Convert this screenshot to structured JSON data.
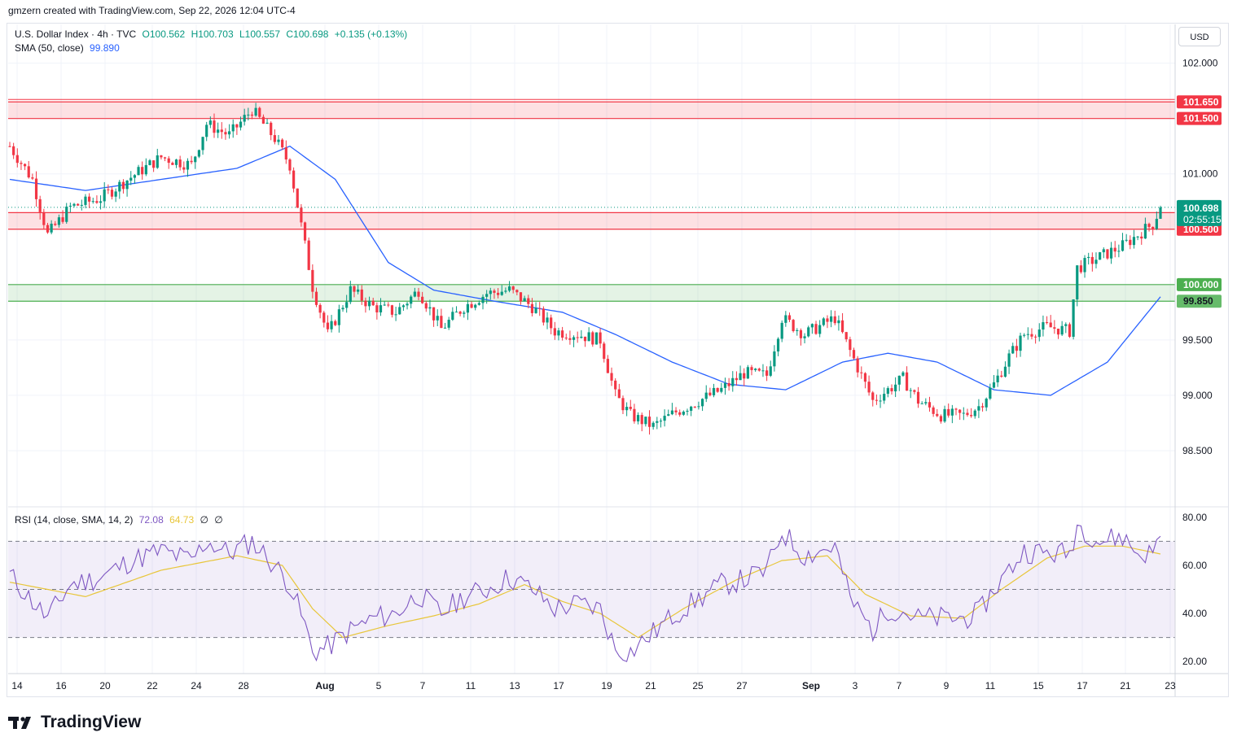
{
  "header": {
    "attribution": "gmzern created with TradingView.com, Sep 22, 2026 12:04 UTC-4"
  },
  "legend": {
    "symbol": "U.S. Dollar Index · 4h · TVC",
    "open": "O100.562",
    "high": "H100.703",
    "low": "L100.557",
    "close": "C100.698",
    "change": "+0.135 (+0.13%)",
    "sma_label": "SMA (50, close)",
    "sma_value": "99.890",
    "rsi_label": "RSI (14, close, SMA, 14, 2)",
    "rsi_value": "72.08",
    "rsi_sma_value": "64.73",
    "rsi_extra1": "∅",
    "rsi_extra2": "∅"
  },
  "currency_button": "USD",
  "brand": "TradingView",
  "colors": {
    "up": "#089981",
    "down": "#f23645",
    "sma": "#2962ff",
    "rsi": "#7e57c2",
    "rsi_sma": "#e8c63a",
    "resistance_zone": "#f23645",
    "support_zone": "#4caf50"
  },
  "chart_data": {
    "type": "candlestick",
    "title": "U.S. Dollar Index · 4h · TVC",
    "price_axis": {
      "ylim": [
        98.0,
        102.35
      ],
      "ticks": [
        "102.000",
        "101.000",
        "99.500",
        "99.000",
        "98.500"
      ],
      "tick_values": [
        102.0,
        101.0,
        99.5,
        99.0,
        98.5
      ]
    },
    "x_axis": {
      "tick_labels": [
        "14",
        "16",
        "20",
        "22",
        "24",
        "28",
        "Aug",
        "5",
        "7",
        "11",
        "13",
        "17",
        "19",
        "21",
        "25",
        "27",
        "Sep",
        "3",
        "7",
        "9",
        "11",
        "15",
        "17",
        "21",
        "23"
      ]
    },
    "zones": [
      {
        "name": "resistance-upper",
        "low": 101.5,
        "high": 101.65,
        "low_label": "101.500",
        "high_label": "101.650",
        "color": "#f23645"
      },
      {
        "name": "resistance-lower",
        "low": 100.5,
        "high": 100.65,
        "low_label": "100.500",
        "high_label": "100.650",
        "color": "#f23645"
      },
      {
        "name": "support",
        "low": 99.85,
        "high": 100.0,
        "low_label": "99.850",
        "high_label": "100.000",
        "color": "#4caf50"
      }
    ],
    "last_price": {
      "value": 100.698,
      "label": "100.698",
      "countdown": "02:55:15"
    },
    "price_anchors": [
      [
        0,
        101.25
      ],
      [
        6,
        100.95
      ],
      [
        10,
        100.45
      ],
      [
        16,
        100.7
      ],
      [
        24,
        100.78
      ],
      [
        32,
        100.97
      ],
      [
        40,
        101.15
      ],
      [
        48,
        101.08
      ],
      [
        52,
        101.45
      ],
      [
        58,
        101.35
      ],
      [
        64,
        101.58
      ],
      [
        70,
        101.32
      ],
      [
        74,
        101.08
      ],
      [
        78,
        100.35
      ],
      [
        80,
        99.98
      ],
      [
        84,
        99.55
      ],
      [
        90,
        99.95
      ],
      [
        96,
        99.8
      ],
      [
        102,
        99.75
      ],
      [
        108,
        99.95
      ],
      [
        114,
        99.6
      ],
      [
        120,
        99.8
      ],
      [
        126,
        99.92
      ],
      [
        132,
        99.95
      ],
      [
        138,
        99.8
      ],
      [
        144,
        99.58
      ],
      [
        150,
        99.55
      ],
      [
        156,
        99.5
      ],
      [
        160,
        99.0
      ],
      [
        164,
        98.82
      ],
      [
        170,
        98.72
      ],
      [
        176,
        98.85
      ],
      [
        182,
        98.95
      ],
      [
        188,
        99.05
      ],
      [
        194,
        99.2
      ],
      [
        200,
        99.18
      ],
      [
        204,
        99.7
      ],
      [
        210,
        99.55
      ],
      [
        218,
        99.7
      ],
      [
        222,
        99.4
      ],
      [
        228,
        98.95
      ],
      [
        232,
        99.05
      ],
      [
        236,
        99.15
      ],
      [
        240,
        98.95
      ],
      [
        246,
        98.82
      ],
      [
        252,
        98.82
      ],
      [
        256,
        98.9
      ],
      [
        260,
        99.1
      ],
      [
        264,
        99.35
      ],
      [
        268,
        99.55
      ],
      [
        274,
        99.62
      ],
      [
        280,
        99.58
      ],
      [
        282,
        100.15
      ],
      [
        288,
        100.25
      ],
      [
        294,
        100.35
      ],
      [
        298,
        100.45
      ],
      [
        302,
        100.55
      ],
      [
        304,
        100.7
      ]
    ],
    "sma50_anchors": [
      [
        0,
        100.95
      ],
      [
        20,
        100.85
      ],
      [
        40,
        100.95
      ],
      [
        60,
        101.05
      ],
      [
        74,
        101.25
      ],
      [
        86,
        100.95
      ],
      [
        100,
        100.2
      ],
      [
        112,
        99.95
      ],
      [
        128,
        99.85
      ],
      [
        146,
        99.75
      ],
      [
        160,
        99.55
      ],
      [
        175,
        99.3
      ],
      [
        190,
        99.1
      ],
      [
        205,
        99.05
      ],
      [
        220,
        99.3
      ],
      [
        232,
        99.38
      ],
      [
        245,
        99.3
      ],
      [
        260,
        99.05
      ],
      [
        275,
        99.0
      ],
      [
        290,
        99.3
      ],
      [
        304,
        99.89
      ]
    ],
    "rsi": {
      "ylim": [
        15,
        84
      ],
      "ticks": [
        "80.00",
        "60.00",
        "40.00",
        "20.00"
      ],
      "tick_values": [
        80,
        60,
        40,
        20
      ],
      "bands": [
        70,
        50,
        30
      ],
      "rsi_anchors": [
        [
          0,
          56
        ],
        [
          6,
          45
        ],
        [
          10,
          38
        ],
        [
          16,
          52
        ],
        [
          24,
          55
        ],
        [
          32,
          62
        ],
        [
          40,
          66
        ],
        [
          48,
          62
        ],
        [
          52,
          70
        ],
        [
          58,
          65
        ],
        [
          64,
          70
        ],
        [
          70,
          60
        ],
        [
          74,
          52
        ],
        [
          78,
          35
        ],
        [
          80,
          24
        ],
        [
          84,
          26
        ],
        [
          90,
          33
        ],
        [
          96,
          38
        ],
        [
          102,
          40
        ],
        [
          108,
          48
        ],
        [
          114,
          40
        ],
        [
          120,
          47
        ],
        [
          126,
          50
        ],
        [
          132,
          55
        ],
        [
          138,
          50
        ],
        [
          144,
          42
        ],
        [
          150,
          44
        ],
        [
          156,
          42
        ],
        [
          160,
          25
        ],
        [
          164,
          24
        ],
        [
          170,
          32
        ],
        [
          176,
          40
        ],
        [
          182,
          46
        ],
        [
          188,
          52
        ],
        [
          194,
          54
        ],
        [
          200,
          58
        ],
        [
          204,
          74
        ],
        [
          210,
          64
        ],
        [
          218,
          68
        ],
        [
          222,
          46
        ],
        [
          228,
          33
        ],
        [
          232,
          42
        ],
        [
          236,
          41
        ],
        [
          240,
          38
        ],
        [
          246,
          38
        ],
        [
          252,
          38
        ],
        [
          256,
          40
        ],
        [
          260,
          50
        ],
        [
          264,
          58
        ],
        [
          268,
          66
        ],
        [
          274,
          65
        ],
        [
          280,
          65
        ],
        [
          282,
          77
        ],
        [
          288,
          70
        ],
        [
          294,
          72
        ],
        [
          298,
          65
        ],
        [
          302,
          65
        ],
        [
          304,
          72
        ]
      ],
      "rsi_sma_anchors": [
        [
          0,
          53
        ],
        [
          20,
          47
        ],
        [
          40,
          58
        ],
        [
          60,
          64
        ],
        [
          72,
          60
        ],
        [
          80,
          42
        ],
        [
          88,
          30
        ],
        [
          100,
          35
        ],
        [
          112,
          39
        ],
        [
          124,
          44
        ],
        [
          136,
          52
        ],
        [
          146,
          45
        ],
        [
          156,
          40
        ],
        [
          166,
          30
        ],
        [
          178,
          42
        ],
        [
          192,
          54
        ],
        [
          204,
          62
        ],
        [
          216,
          64
        ],
        [
          226,
          48
        ],
        [
          238,
          39
        ],
        [
          252,
          38
        ],
        [
          262,
          50
        ],
        [
          274,
          63
        ],
        [
          284,
          68
        ],
        [
          294,
          68
        ],
        [
          304,
          64.73
        ]
      ]
    }
  }
}
